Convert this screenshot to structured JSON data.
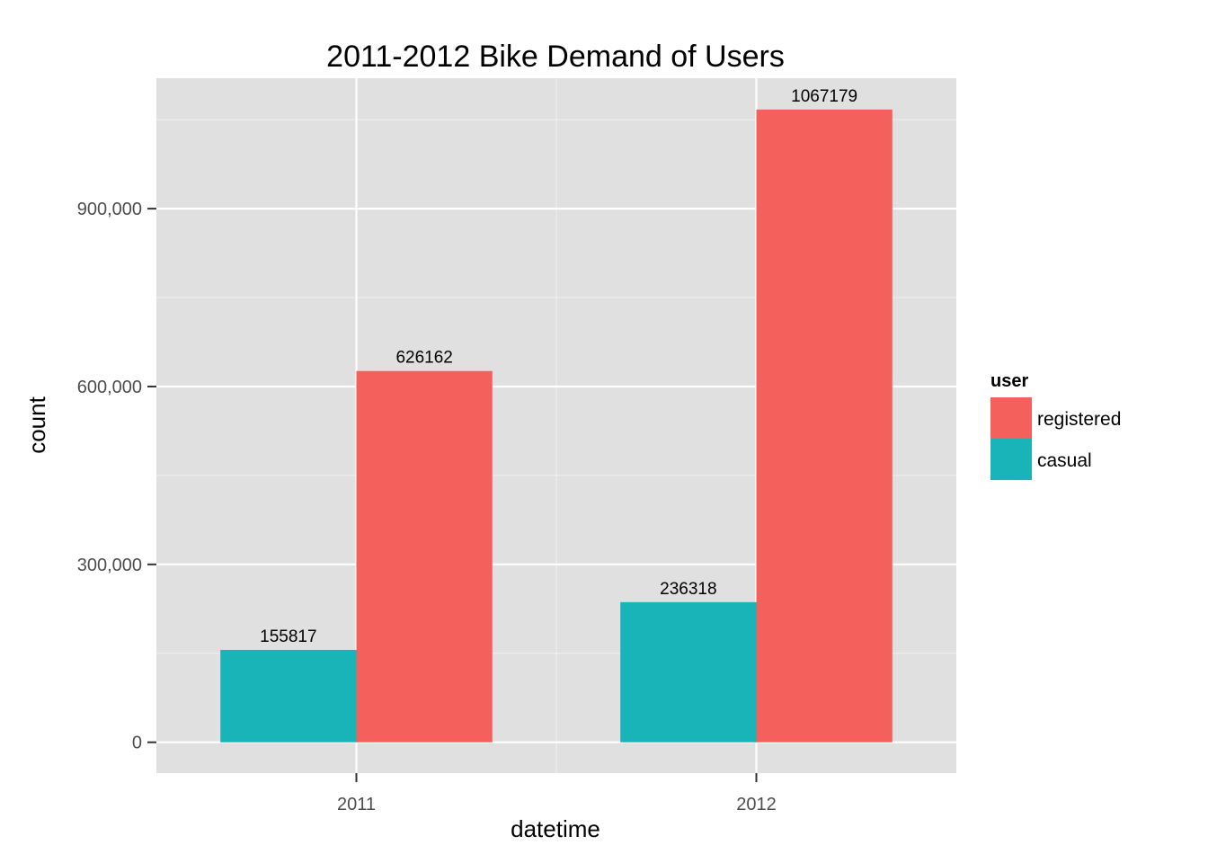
{
  "chart_data": {
    "type": "bar",
    "title": "2011-2012 Bike Demand of Users",
    "xlabel": "datetime",
    "ylabel": "count",
    "categories": [
      "2011",
      "2012"
    ],
    "series": [
      {
        "name": "casual",
        "color": "#19B4B8",
        "values": [
          155817,
          236318
        ]
      },
      {
        "name": "registered",
        "color": "#F4605C",
        "values": [
          626162,
          1067179
        ]
      }
    ],
    "data_labels": [
      [
        "155817",
        "236318"
      ],
      [
        "626162",
        "1067179"
      ]
    ],
    "ylim": [
      -52000,
      1120000
    ],
    "y_ticks": [
      0,
      300000,
      600000,
      900000
    ],
    "y_tick_labels": [
      "0",
      "300,000",
      "600,000",
      "900,000"
    ],
    "grid": true,
    "legend": {
      "title": "user",
      "placement": "right",
      "entries": [
        {
          "label": "registered",
          "color": "#F4605C"
        },
        {
          "label": "casual",
          "color": "#19B4B8"
        }
      ]
    },
    "colors": {
      "panel_background": "#E0E0E0",
      "grid": "#FFFFFF",
      "tick_text": "#4D4D4D"
    }
  }
}
